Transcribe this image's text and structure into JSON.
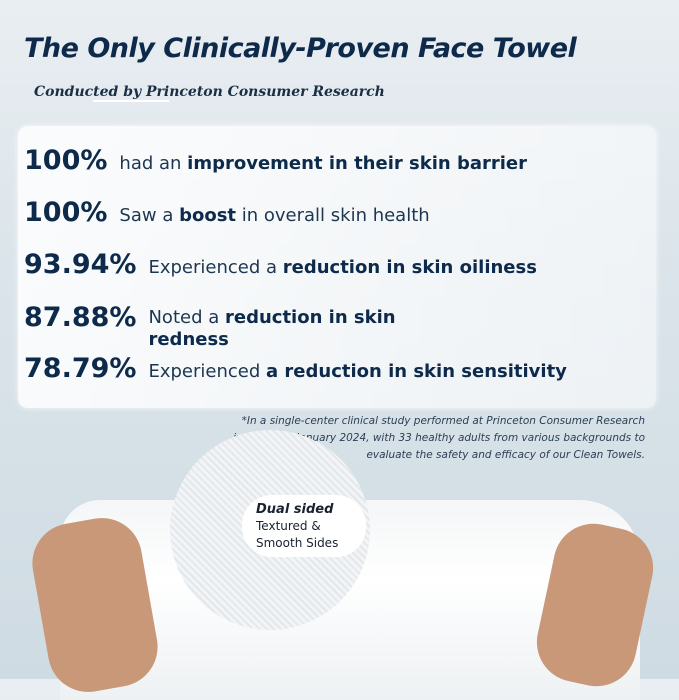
{
  "title": "The Only Clinically-Proven Face Towel",
  "subtitle": "Conducted by Princeton Consumer Research",
  "stats": [
    {
      "value": "100%",
      "pre": "had an ",
      "bold": "improvement in their skin barrier",
      "post": ""
    },
    {
      "value": "100%",
      "pre": "Saw a ",
      "bold": "boost",
      "post": " in overall skin health"
    },
    {
      "value": "93.94%",
      "pre": "Experienced a ",
      "bold": "reduction in skin oiliness",
      "post": ""
    },
    {
      "value": "87.88%",
      "pre": "Noted a ",
      "bold": "reduction in skin",
      "post": "redness"
    },
    {
      "value": "78.79%",
      "pre": "Experienced ",
      "bold": "a reduction in skin sensitivity",
      "post": ""
    }
  ],
  "footnote": "*In a single-center clinical study performed at Princeton Consumer Research institute on January 2024, with 33 healthy adults from various backgrounds to evaluate the safety and efficacy of our Clean Towels.",
  "badge": {
    "title": "Dual sided",
    "line1": "Textured &",
    "line2": "Smooth Sides"
  }
}
